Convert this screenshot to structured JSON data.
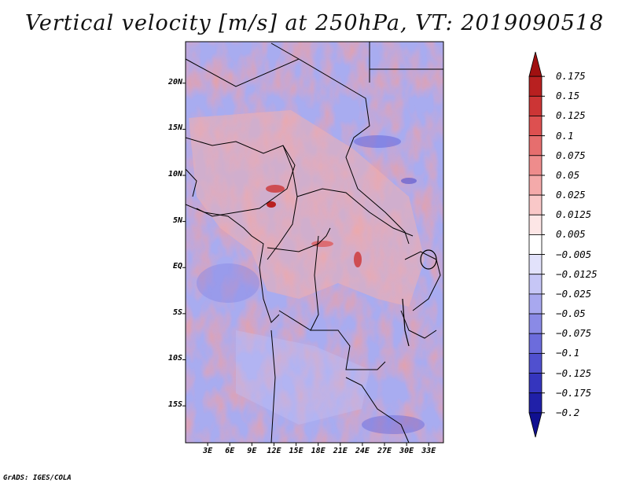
{
  "title": "Vertical velocity [m/s] at 250hPa, VT: 2019090518",
  "credit": "GrADS: IGES/COLA",
  "map": {
    "lat_labels": [
      "20N",
      "15N",
      "10N",
      "5N",
      "EQ",
      "5S",
      "10S",
      "15S"
    ],
    "lon_labels": [
      "3E",
      "6E",
      "9E",
      "12E",
      "15E",
      "18E",
      "21E",
      "24E",
      "27E",
      "30E",
      "33E"
    ],
    "extent": {
      "lon_min": 0,
      "lon_max": 35,
      "lat_min": -19,
      "lat_max": 24.5
    }
  },
  "colorbar": {
    "labels": [
      "0.175",
      "0.15",
      "0.125",
      "0.1",
      "0.075",
      "0.05",
      "0.025",
      "0.0125",
      "0.005",
      "-0.005",
      "-0.0125",
      "-0.025",
      "-0.05",
      "-0.075",
      "-0.1",
      "-0.125",
      "-0.175",
      "-0.2"
    ],
    "colors": [
      "#a01010",
      "#b82020",
      "#cc3535",
      "#dd5050",
      "#e66e6e",
      "#ee8c8c",
      "#f4aaaa",
      "#f9c8c8",
      "#fde6e6",
      "#ffffff",
      "#e2e2fb",
      "#c6c6f6",
      "#a8a8ef",
      "#8a8ae6",
      "#6c6cdc",
      "#5050cf",
      "#3535be",
      "#2020a8",
      "#101090"
    ]
  }
}
